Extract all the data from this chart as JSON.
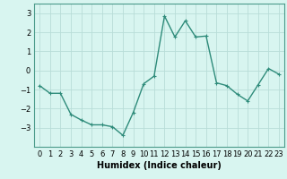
{
  "x": [
    0,
    1,
    2,
    3,
    4,
    5,
    6,
    7,
    8,
    9,
    10,
    11,
    12,
    13,
    14,
    15,
    16,
    17,
    18,
    19,
    20,
    21,
    22,
    23
  ],
  "y": [
    -0.8,
    -1.2,
    -1.2,
    -2.3,
    -2.6,
    -2.85,
    -2.85,
    -2.95,
    -3.4,
    -2.2,
    -0.7,
    -0.3,
    2.85,
    1.75,
    2.6,
    1.75,
    1.8,
    -0.65,
    -0.8,
    -1.25,
    -1.6,
    -0.75,
    0.1,
    -0.2
  ],
  "line_color": "#2e8b7a",
  "marker": "+",
  "marker_size": 3,
  "marker_linewidth": 0.8,
  "bg_color": "#d8f5f0",
  "grid_color": "#b8ddd8",
  "xlabel": "Humidex (Indice chaleur)",
  "xlabel_fontsize": 7,
  "tick_fontsize": 6,
  "ylim": [
    -4,
    3.5
  ],
  "xlim": [
    -0.5,
    23.5
  ],
  "yticks": [
    -3,
    -2,
    -1,
    0,
    1,
    2,
    3
  ],
  "xticks": [
    0,
    1,
    2,
    3,
    4,
    5,
    6,
    7,
    8,
    9,
    10,
    11,
    12,
    13,
    14,
    15,
    16,
    17,
    18,
    19,
    20,
    21,
    22,
    23
  ],
  "spine_color": "#4a9a8a",
  "linewidth": 1.0
}
